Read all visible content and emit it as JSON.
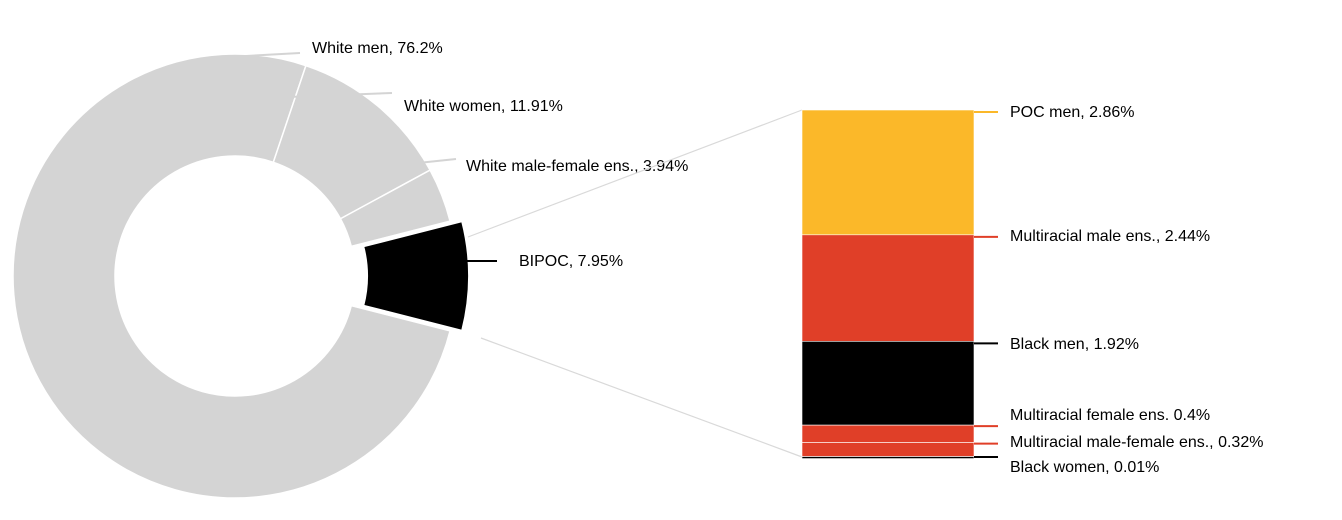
{
  "chart_data": [
    {
      "type": "donut",
      "slices": [
        {
          "label": "White men, 76.2%",
          "value": 76.2,
          "color": "#d4d4d4"
        },
        {
          "label": "White women, 11.91%",
          "value": 11.91,
          "color": "#d4d4d4"
        },
        {
          "label": "White male-female ens., 3.94%",
          "value": 3.94,
          "color": "#d4d4d4"
        },
        {
          "label": "BIPOC, 7.95%",
          "value": 7.95,
          "color": "#000000",
          "exploded": true
        }
      ],
      "leader_line_color": "#d4d4d4"
    },
    {
      "type": "bar",
      "stacked": true,
      "breakdown_of": "BIPOC, 7.95%",
      "segments": [
        {
          "label": "POC men, 2.86%",
          "value": 2.86,
          "color": "#fbb829"
        },
        {
          "label": "Multiracial male ens., 2.44%",
          "value": 2.44,
          "color": "#e03f28"
        },
        {
          "label": "Black men, 1.92%",
          "value": 1.92,
          "color": "#000000"
        },
        {
          "label": "Multiracial female ens. 0.4%",
          "value": 0.4,
          "color": "#e03f28"
        },
        {
          "label": "Multiracial male-female ens., 0.32%",
          "value": 0.32,
          "color": "#e03f28"
        },
        {
          "label": "Black women, 0.01%",
          "value": 0.01,
          "color": "#000000"
        }
      ]
    }
  ]
}
